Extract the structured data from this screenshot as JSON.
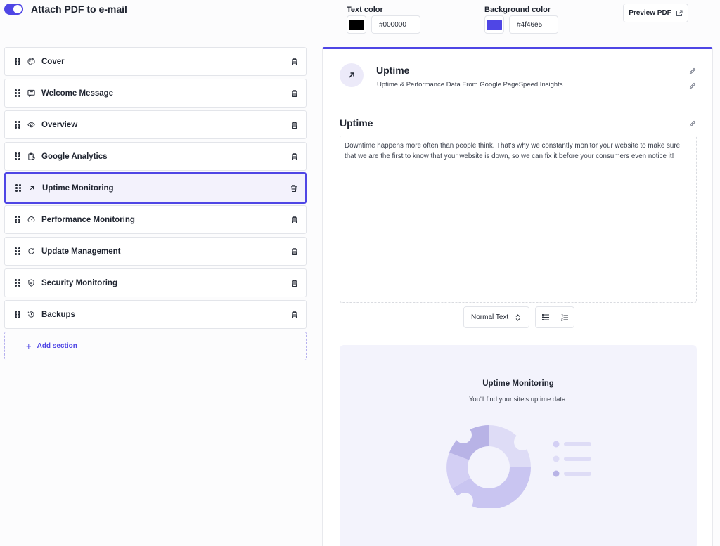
{
  "header": {
    "attach_label": "Attach PDF to e-mail",
    "attach_enabled": true,
    "text_color": {
      "label": "Text color",
      "value": "#000000",
      "swatch": "#000000"
    },
    "background_color": {
      "label": "Background color",
      "value": "#4f46e5",
      "swatch": "#4f46e5"
    },
    "preview_label": "Preview PDF"
  },
  "sections": {
    "items": [
      {
        "label": "Cover",
        "icon": "palette-icon"
      },
      {
        "label": "Welcome Message",
        "icon": "message-icon"
      },
      {
        "label": "Overview",
        "icon": "eye-icon"
      },
      {
        "label": "Google Analytics",
        "icon": "clipboard-chart-icon"
      },
      {
        "label": "Uptime Monitoring",
        "icon": "arrow-up-right-icon",
        "active": true
      },
      {
        "label": "Performance Monitoring",
        "icon": "gauge-icon"
      },
      {
        "label": "Update Management",
        "icon": "refresh-icon"
      },
      {
        "label": "Security Monitoring",
        "icon": "shield-icon"
      },
      {
        "label": "Backups",
        "icon": "history-icon"
      }
    ],
    "add_label": "Add section"
  },
  "panel": {
    "title": "Uptime",
    "subtitle": "Uptime & Performance Data From Google PageSpeed Insights.",
    "body_title": "Uptime",
    "body_text": "Downtime happens more often than people think. That's why we constantly monitor your website to make sure that we are the first to know that your website is down, so we can fix it before your consumers even notice it!",
    "text_style": "Normal Text",
    "placeholder_title": "Uptime Monitoring",
    "placeholder_subtitle": "You'll find your site's uptime data."
  },
  "colors": {
    "accent": "#4f46e5",
    "accent_light": "#eceaf9"
  }
}
